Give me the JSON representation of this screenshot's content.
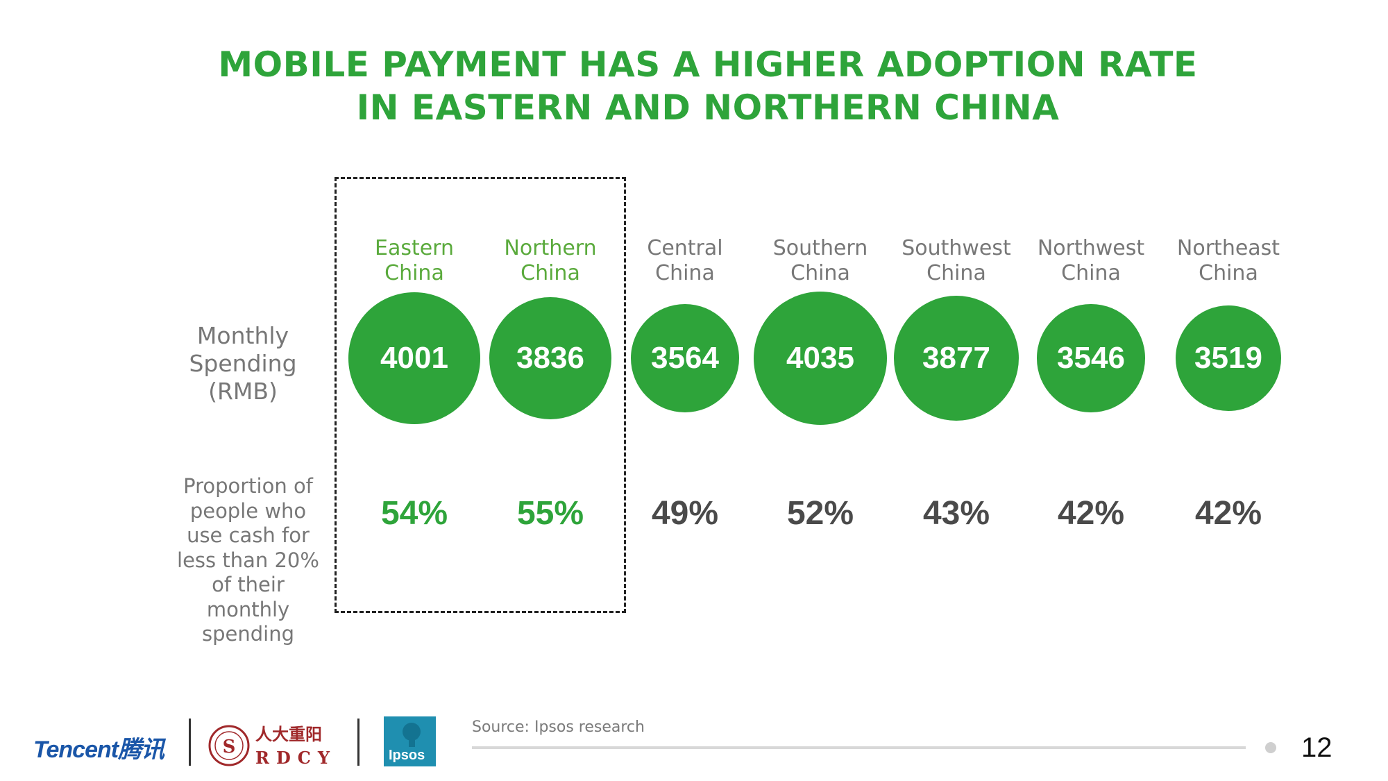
{
  "title_line1": "MOBILE PAYMENT HAS A HIGHER ADOPTION RATE",
  "title_line2": "IN EASTERN AND NORTHERN CHINA",
  "row1_label": [
    "Monthly",
    "Spending",
    "(RMB)"
  ],
  "row2_label": [
    "Proportion of",
    "people who",
    "use cash for",
    "less than 20%",
    "of their",
    "monthly",
    "spending"
  ],
  "source": "Source: Ipsos research",
  "page_number": "12",
  "logos": {
    "tencent": "Tencent腾讯",
    "rdcy_cn": "人大重阳",
    "rdcy_en": "RDCY",
    "ipsos": "Ipsos"
  },
  "colors": {
    "accent": "#2ea43a",
    "gray_text": "#777777",
    "dark_text": "#4a4a4a"
  },
  "chart_data": {
    "type": "table",
    "categories": [
      {
        "line1": "Eastern",
        "line2": "China"
      },
      {
        "line1": "Northern",
        "line2": "China"
      },
      {
        "line1": "Central",
        "line2": "China"
      },
      {
        "line1": "Southern",
        "line2": "China"
      },
      {
        "line1": "Southwest",
        "line2": "China"
      },
      {
        "line1": "Northwest",
        "line2": "China"
      },
      {
        "line1": "Northeast",
        "line2": "China"
      }
    ],
    "highlighted": [
      true,
      true,
      false,
      false,
      false,
      false,
      false
    ],
    "series": [
      {
        "name": "Monthly Spending (RMB)",
        "values": [
          4001,
          3836,
          3564,
          4035,
          3877,
          3546,
          3519
        ]
      },
      {
        "name": "Proportion of people who use cash for less than 20% of their monthly spending",
        "values": [
          "54%",
          "55%",
          "49%",
          "52%",
          "43%",
          "42%",
          "42%"
        ]
      }
    ]
  }
}
